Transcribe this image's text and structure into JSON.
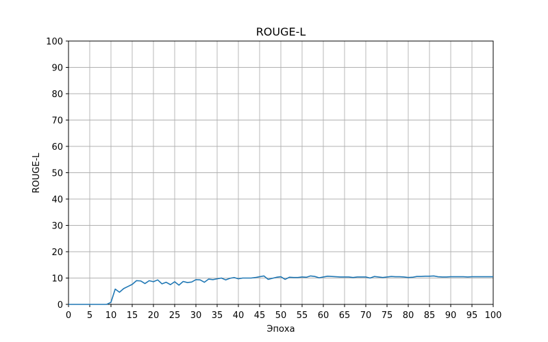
{
  "chart_data": {
    "type": "line",
    "title": "ROUGE-L",
    "xlabel": "Эпоха",
    "ylabel": "ROUGE-L",
    "xlim": [
      0,
      100
    ],
    "ylim": [
      0,
      100
    ],
    "xticks": [
      "0",
      "5",
      "10",
      "15",
      "20",
      "25",
      "30",
      "35",
      "40",
      "45",
      "50",
      "55",
      "60",
      "65",
      "70",
      "75",
      "80",
      "85",
      "90",
      "95",
      "100"
    ],
    "yticks": [
      "0",
      "10",
      "20",
      "30",
      "40",
      "50",
      "60",
      "70",
      "80",
      "90",
      "100"
    ],
    "grid": true,
    "series": [
      {
        "color": "#1f77b4",
        "x": [
          0,
          1,
          2,
          3,
          4,
          5,
          6,
          7,
          8,
          9,
          10,
          11,
          12,
          13,
          14,
          15,
          16,
          17,
          18,
          19,
          20,
          21,
          22,
          23,
          24,
          25,
          26,
          27,
          28,
          29,
          30,
          31,
          32,
          33,
          34,
          35,
          36,
          37,
          38,
          39,
          40,
          41,
          42,
          43,
          44,
          45,
          46,
          47,
          48,
          49,
          50,
          51,
          52,
          53,
          54,
          55,
          56,
          57,
          58,
          59,
          60,
          61,
          62,
          63,
          64,
          65,
          66,
          67,
          68,
          69,
          70,
          71,
          72,
          73,
          74,
          75,
          76,
          77,
          78,
          79,
          80,
          81,
          82,
          83,
          84,
          85,
          86,
          87,
          88,
          89,
          90,
          91,
          92,
          93,
          94,
          95,
          96,
          97,
          98,
          99,
          100
        ],
        "y": [
          0,
          0,
          0,
          0,
          0,
          0,
          0,
          0,
          0,
          0,
          0.8,
          5.8,
          4.6,
          6.0,
          6.8,
          7.6,
          9.0,
          8.9,
          7.9,
          9.0,
          8.6,
          9.3,
          7.8,
          8.4,
          7.5,
          8.6,
          7.3,
          8.7,
          8.3,
          8.5,
          9.4,
          9.3,
          8.4,
          9.6,
          9.4,
          9.7,
          10.0,
          9.3,
          9.9,
          10.2,
          9.7,
          10.0,
          10.0,
          10.0,
          10.2,
          10.5,
          10.8,
          9.5,
          9.9,
          10.3,
          10.5,
          9.5,
          10.3,
          10.2,
          10.2,
          10.4,
          10.3,
          10.8,
          10.6,
          10.1,
          10.4,
          10.7,
          10.6,
          10.5,
          10.4,
          10.4,
          10.4,
          10.2,
          10.4,
          10.4,
          10.4,
          10.0,
          10.6,
          10.4,
          10.2,
          10.4,
          10.6,
          10.5,
          10.5,
          10.4,
          10.2,
          10.3,
          10.6,
          10.6,
          10.7,
          10.7,
          10.8,
          10.5,
          10.4,
          10.4,
          10.5,
          10.5,
          10.5,
          10.5,
          10.4,
          10.5,
          10.5,
          10.5,
          10.5,
          10.5,
          10.5
        ]
      }
    ]
  }
}
